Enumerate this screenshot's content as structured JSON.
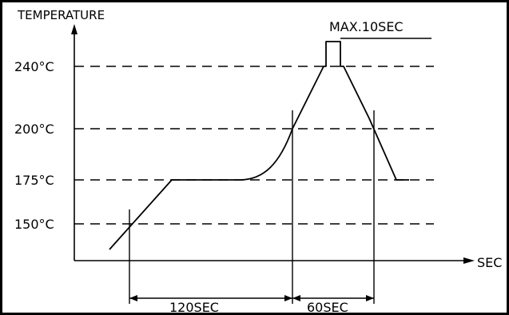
{
  "title": "TEMPERATURE",
  "x_axis_label": "SEC",
  "y_ticks": [
    "240°C",
    "200°C",
    "175°C",
    "150°C"
  ],
  "annotations": {
    "peak_time": "MAX.10SEC",
    "preheat_span": "120SEC",
    "reflow_span": "60SEC"
  },
  "colors": {
    "line": "#000000",
    "background": "#ffffff"
  }
}
